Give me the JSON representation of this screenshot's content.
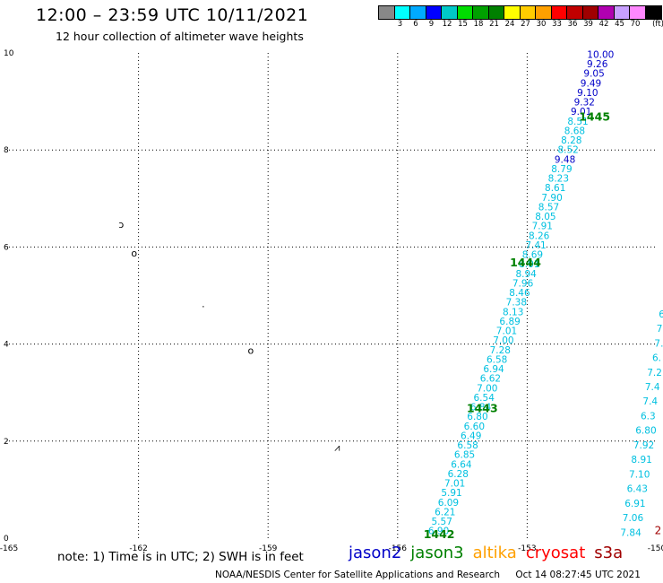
{
  "header": {
    "title": "12:00 – 23:59 UTC 10/11/2021",
    "subtitle": "12 hour collection of altimeter wave heights"
  },
  "colors": {
    "light_cyan": "#00c0e0",
    "dark_blue": "#0000c8",
    "green_label": "#008000",
    "dark_red": "#a00000"
  },
  "color_scale": {
    "unit": "(ft)",
    "swatches": [
      "#888888",
      "#00ffff",
      "#00aaff",
      "#0000ff",
      "#00c8c8",
      "#00dd00",
      "#00a000",
      "#008000",
      "#ffff00",
      "#ffcc00",
      "#ffa000",
      "#ff0000",
      "#c00000",
      "#a00000",
      "#b000b0",
      "#c8a0ff",
      "#ff88ff",
      "#000000"
    ],
    "labels": [
      "3",
      "6",
      "9",
      "12",
      "15",
      "18",
      "21",
      "24",
      "27",
      "30",
      "33",
      "36",
      "39",
      "42",
      "45",
      "70"
    ]
  },
  "axes": {
    "x_ticks": [
      "-165",
      "-162",
      "-159",
      "-156",
      "-153",
      "-150"
    ],
    "y_ticks": [
      "0",
      "2",
      "4",
      "6",
      "8",
      "10"
    ],
    "x_range": [
      -165,
      -150
    ],
    "y_range": [
      0,
      10
    ]
  },
  "track1": {
    "values": [
      "6.90",
      "5.57",
      "6.21",
      "6.09",
      "5.91",
      "7.01",
      "6.28",
      "6.64",
      "6.85",
      "6.58",
      "6.49",
      "6.60",
      "6.80",
      "6.84",
      "6.54",
      "7.00",
      "6.62",
      "6.94",
      "6.58",
      "7.28",
      "7.00",
      "7.01",
      "6.89",
      "8.13",
      "7.38",
      "8.46",
      "7.96",
      "8.94",
      "8.01",
      "8.69",
      "7.41",
      "8.26",
      "7.91",
      "8.05",
      "8.57",
      "7.90",
      "8.61",
      "8.23",
      "8.79",
      "9.48",
      "8.52",
      "8.28",
      "8.68",
      "8.51",
      "9.01",
      "9.32",
      "9.10",
      "9.49",
      "9.05",
      "9.26",
      "10.00"
    ],
    "dark": [
      "9.48",
      "9.01",
      "9.32",
      "9.10",
      "9.49",
      "9.05",
      "9.26",
      "10.00"
    ]
  },
  "track2": {
    "values": [
      "7.84",
      "7.06",
      "6.91",
      "6.43",
      "7.10",
      "8.91",
      "7.92",
      "6.80",
      "6.3",
      "7.4",
      "7.4",
      "7.2",
      "6.",
      "7.",
      "7.",
      "6."
    ]
  },
  "track3": {
    "values": [
      "2"
    ]
  },
  "time_labels": [
    {
      "text": "1442",
      "lon": -155.4,
      "lat": 0.0
    },
    {
      "text": "1443",
      "lon": -154.4,
      "lat": 2.6
    },
    {
      "text": "1444",
      "lon": -153.4,
      "lat": 5.6
    },
    {
      "text": "1445",
      "lon": -151.8,
      "lat": 8.6
    }
  ],
  "islands": [
    {
      "name": "island-a-icon",
      "glyph": "ↄ",
      "lon": -162.4,
      "lat": 6.4
    },
    {
      "name": "island-b-icon",
      "glyph": "o",
      "lon": -162.1,
      "lat": 5.8
    },
    {
      "name": "island-c-icon",
      "glyph": "·",
      "lon": -160.5,
      "lat": 4.7
    },
    {
      "name": "island-d-icon",
      "glyph": "o",
      "lon": -159.4,
      "lat": 3.8
    },
    {
      "name": "island-e-icon",
      "glyph": "⩘",
      "lon": -157.4,
      "lat": 1.8
    }
  ],
  "footer": {
    "note": "note:  1) Time is in UTC;  2) SWH is in feet",
    "satellites": [
      {
        "name": "jason2",
        "color": "#0000c8"
      },
      {
        "name": "jason3",
        "color": "#008000"
      },
      {
        "name": "altika",
        "color": "#ffa000"
      },
      {
        "name": "cryosat",
        "color": "#ff0000"
      },
      {
        "name": "s3a",
        "color": "#a00000"
      }
    ],
    "credit": "NOAA/NESDIS Center for Satellite Applications and Research",
    "timestamp": "Oct 14 08:27:45 UTC 2021"
  }
}
